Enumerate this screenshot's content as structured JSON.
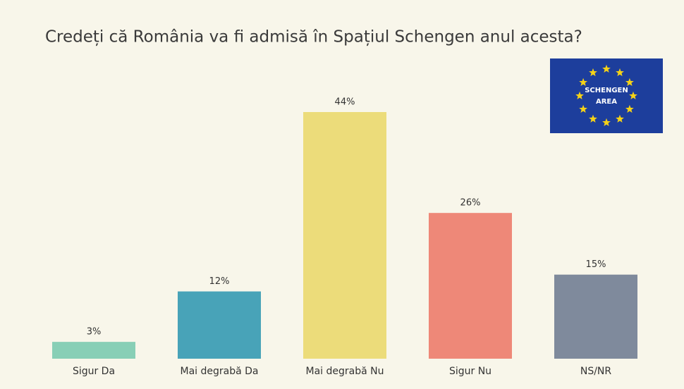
{
  "chart_data": {
    "type": "bar",
    "title": "Credeți că România va fi admisă în Spațiul Schengen anul acesta?",
    "categories": [
      "Sigur Da",
      "Mai degrabă Da",
      "Mai degrabă Nu",
      "Sigur Nu",
      "NS/NR"
    ],
    "values": [
      3,
      12,
      44,
      26,
      15
    ],
    "value_labels": [
      "3%",
      "12%",
      "44%",
      "26%",
      "15%"
    ],
    "colors": [
      "#88cfb6",
      "#48a3b8",
      "#ecdc7a",
      "#ee8878",
      "#7f8a9c"
    ]
  },
  "badge": {
    "lines": [
      "SCHENGEN",
      "AREA"
    ]
  }
}
